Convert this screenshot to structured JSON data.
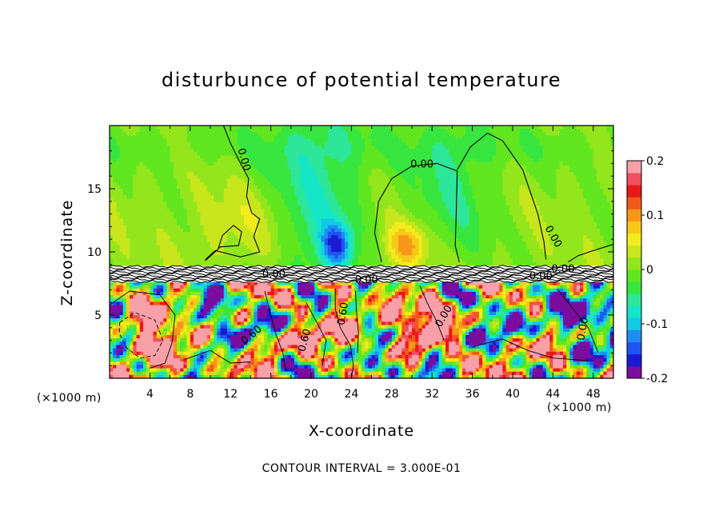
{
  "chart_data": {
    "type": "heatmap",
    "title": "disturbunce of potential temperature",
    "xlabel": "X-coordinate",
    "ylabel": "Z-coordinate",
    "x_unit_left": "(×1000 m)",
    "x_unit_right": "(×1000 m)",
    "footer": "CONTOUR INTERVAL = 3.000E-01",
    "xlim": [
      0,
      50
    ],
    "ylim": [
      0,
      20
    ],
    "xticks": [
      "4",
      "8",
      "12",
      "16",
      "20",
      "24",
      "28",
      "32",
      "36",
      "40",
      "44",
      "48"
    ],
    "yticks": [
      "5",
      "10",
      "15"
    ],
    "colorbar": {
      "range": [
        -0.2,
        0.2
      ],
      "tick_labels": [
        "0.2",
        "0.1",
        "0",
        "-0.1",
        "-0.2"
      ],
      "colors": [
        "#7b0d9e",
        "#1a1ad4",
        "#1f55f0",
        "#1f8cf0",
        "#12c9e6",
        "#16e6c8",
        "#2ee69a",
        "#37e63e",
        "#61e61f",
        "#93e61c",
        "#c8e61c",
        "#f2ec1c",
        "#f7c81a",
        "#f79619",
        "#f25a19",
        "#e81919",
        "#f04e62",
        "#f7a0a8"
      ]
    },
    "contour_labels": [
      "0.00",
      "0.00",
      "0.00",
      "0.60",
      "0.60",
      "0.60",
      "0.00",
      "0.00",
      "0.00",
      "0.00",
      "0.00",
      "0.00"
    ]
  }
}
